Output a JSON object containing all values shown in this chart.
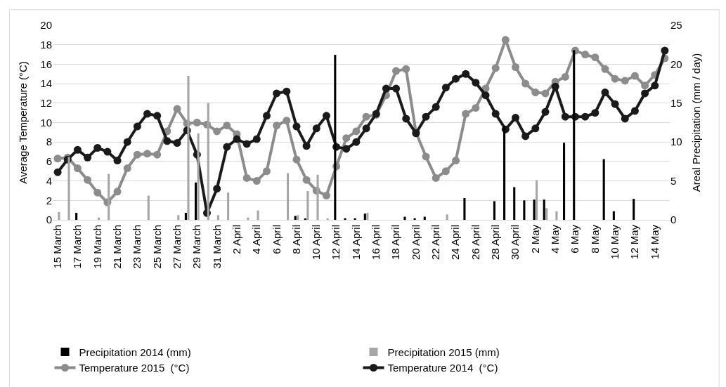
{
  "chart_data": {
    "type": "line",
    "categories": [
      "15 March",
      null,
      "17 March",
      null,
      "19 March",
      null,
      "21 March",
      null,
      "23 March",
      null,
      "25 March",
      null,
      "27 March",
      null,
      "29 March",
      null,
      "31 March",
      null,
      "2 April",
      null,
      "4 April",
      null,
      "6 April",
      null,
      "8 April",
      null,
      "10 April",
      null,
      "12 April",
      null,
      "14 April",
      null,
      "16 April",
      null,
      "18 April",
      null,
      "20 April",
      null,
      "22 April",
      null,
      "24 April",
      null,
      "26 April",
      null,
      "28 April",
      null,
      "30 April",
      null,
      "2 May",
      null,
      "4 May",
      null,
      "6 May",
      null,
      "8 May",
      null,
      "10 May",
      null,
      "12 May",
      null,
      "14 May",
      null
    ],
    "series": [
      {
        "name": "Precipitation 2014 (mm)",
        "type": "bar",
        "axis": "y2",
        "color": "#000000",
        "values": [
          0,
          0,
          0.9,
          0,
          0,
          0,
          0,
          0,
          0,
          0,
          0,
          0,
          0,
          0.9,
          4.8,
          0,
          0,
          0,
          0,
          0,
          0,
          0,
          0,
          0,
          0.5,
          0.1,
          0,
          0,
          21.2,
          0.2,
          0.2,
          0.8,
          0,
          0,
          0,
          0.4,
          0.2,
          0.4,
          0,
          0,
          0,
          2.8,
          0,
          0,
          2.4,
          12.0,
          4.2,
          2.5,
          2.6,
          2.6,
          0,
          9.9,
          21.8,
          0,
          0,
          7.8,
          1.1,
          0,
          2.7,
          0,
          0,
          0
        ]
      },
      {
        "name": "Precipitation 2015 (mm)",
        "type": "bar",
        "axis": "y2",
        "color": "#a6a6a6",
        "values": [
          1.0,
          8.1,
          0,
          0,
          0.3,
          5.9,
          0,
          0,
          0,
          3.1,
          0,
          0,
          0.6,
          18.5,
          11.1,
          15.0,
          0.6,
          3.5,
          0,
          0.3,
          1.2,
          0,
          0,
          6.0,
          0.6,
          3.7,
          5.8,
          0.1,
          0,
          0,
          0,
          0.9,
          0,
          0,
          0,
          0,
          0,
          0,
          0,
          0.7,
          0,
          0,
          0,
          0,
          0,
          0,
          0,
          0,
          5.1,
          1.5,
          1.1,
          0,
          0,
          0,
          0,
          0,
          0,
          0,
          0,
          0,
          0,
          0
        ]
      },
      {
        "name": "Temperature 2015  (°C)",
        "color": "#8c8c8c",
        "values": [
          6.3,
          6.4,
          5.3,
          4.1,
          2.8,
          1.8,
          2.9,
          5.3,
          6.7,
          6.8,
          6.7,
          9.1,
          11.4,
          9.9,
          10.0,
          9.8,
          9.1,
          9.7,
          8.8,
          4.3,
          4.0,
          5.0,
          9.7,
          10.2,
          6.2,
          4.1,
          3.0,
          2.5,
          5.5,
          8.4,
          9.1,
          10.6,
          10.8,
          12.8,
          15.3,
          15.5,
          9.0,
          6.5,
          4.3,
          5.0,
          6.1,
          10.9,
          11.5,
          13.5,
          15.6,
          18.5,
          15.7,
          14.0,
          13.1,
          13.0,
          14.2,
          14.7,
          17.4,
          17.0,
          16.7,
          15.5,
          14.5,
          14.3,
          14.8,
          13.8,
          14.9,
          16.6
        ]
      },
      {
        "name": "Temperature 2014  (°C)",
        "color": "#1a1a1a",
        "values": [
          4.9,
          6.2,
          7.2,
          6.4,
          7.4,
          7.0,
          6.1,
          8.0,
          9.6,
          10.9,
          10.7,
          8.1,
          7.9,
          9.2,
          6.7,
          0.7,
          3.2,
          7.5,
          8.3,
          7.8,
          8.3,
          10.7,
          13.0,
          13.2,
          9.6,
          7.6,
          9.4,
          10.7,
          7.5,
          7.3,
          8.0,
          9.4,
          10.9,
          13.5,
          13.5,
          10.4,
          8.9,
          10.6,
          11.6,
          13.6,
          14.5,
          15.0,
          14.1,
          12.8,
          10.9,
          9.3,
          10.5,
          8.6,
          9.4,
          11.1,
          13.7,
          10.6,
          10.6,
          10.6,
          11.0,
          13.1,
          11.9,
          10.4,
          11.2,
          13.0,
          13.8,
          17.4
        ]
      }
    ],
    "ylabel": "Average Temperature (°C)",
    "y2label": "Areal Precipitation (mm / day)",
    "ylim": [
      0,
      20
    ],
    "yticks": [
      0,
      2,
      4,
      6,
      8,
      10,
      12,
      14,
      16,
      18,
      20
    ],
    "y2lim": [
      0,
      25
    ],
    "y2ticks": [
      0,
      5,
      10,
      15,
      20,
      25
    ],
    "grid": "y",
    "legend": "bottom",
    "marker": "circle",
    "line_style": "solid"
  }
}
